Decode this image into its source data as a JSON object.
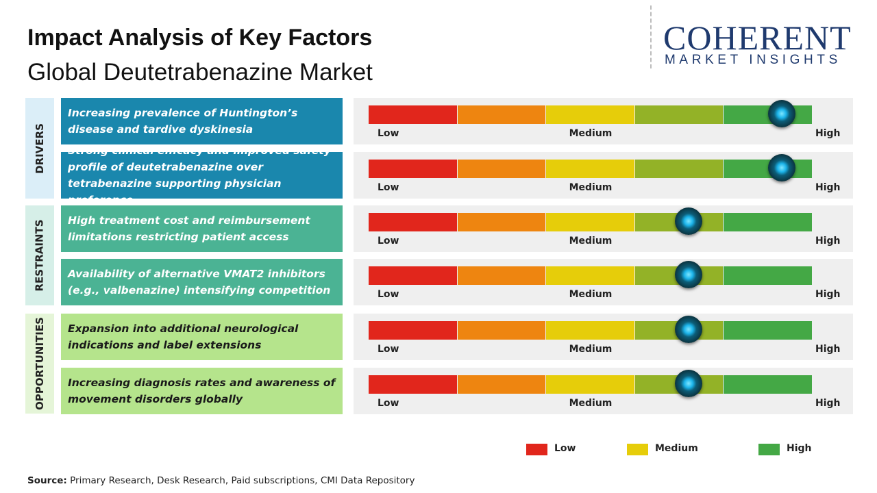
{
  "header": {
    "title": "Impact Analysis of Key Factors",
    "subtitle": "Global Deutetrabenazine Market"
  },
  "logo": {
    "name": "COHERENT",
    "tagline": "MARKET INSIGHTS"
  },
  "scale_labels": [
    "Low",
    "Medium",
    "High"
  ],
  "impact_lim": [
    0,
    100
  ],
  "segment_colors": [
    "#e1261c",
    "#ee8510",
    "#e6cd0a",
    "#93b227",
    "#44a845"
  ],
  "groups": [
    {
      "label": "DRIVERS",
      "panel_color": "#dbeef8",
      "color": "#1a87ad",
      "text_color": "#ffffff",
      "factors": [
        {
          "text": "Increasing prevalence of Huntington’s disease and tardive dyskinesia",
          "impact": 93
        },
        {
          "text": "Strong clinical efficacy and improved safety profile of deutetrabenazine over tetrabenazine supporting physician preference",
          "impact": 93
        }
      ]
    },
    {
      "label": "RESTRAINTS",
      "panel_color": "#d6efe8",
      "color": "#4bb394",
      "text_color": "#ffffff",
      "factors": [
        {
          "text": "High treatment cost and reimbursement limitations restricting patient access",
          "impact": 72
        },
        {
          "text": "Availability of alternative VMAT2 inhibitors (e.g., valbenazine) intensifying competition",
          "impact": 72
        }
      ]
    },
    {
      "label": "OPPORTUNITIES",
      "panel_color": "#e5f5d8",
      "color": "#b5e48c",
      "text_color": "#1a1a1a",
      "factors": [
        {
          "text": "Expansion into additional neurological indications and label extensions",
          "impact": 72
        },
        {
          "text": "Increasing diagnosis rates and awareness of movement disorders globally",
          "impact": 72
        }
      ]
    }
  ],
  "legend": [
    {
      "label": "Low",
      "color": "#e1261c"
    },
    {
      "label": "Medium",
      "color": "#e6cd0a"
    },
    {
      "label": "High",
      "color": "#44a845"
    }
  ],
  "source": {
    "label": "Source:",
    "text": "Primary Research, Desk Research, Paid subscriptions, CMI Data Repository"
  }
}
